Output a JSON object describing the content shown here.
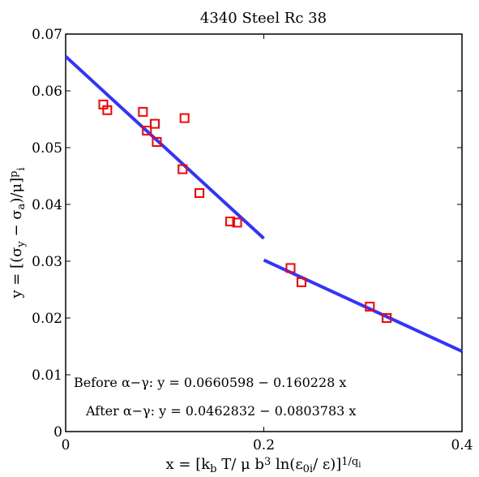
{
  "chart_data": {
    "type": "scatter",
    "title": "4340 Steel Rc 38",
    "xlabel": {
      "parts": [
        {
          "t": "x = [k",
          "s": "n"
        },
        {
          "t": "b",
          "s": "sub"
        },
        {
          "t": " T/ μ b",
          "s": "n"
        },
        {
          "t": "3",
          "s": "sup"
        },
        {
          "t": " ln(ε",
          "s": "n"
        },
        {
          "t": "0i",
          "s": "sub"
        },
        {
          "t": "/ ε)]",
          "s": "n"
        },
        {
          "t": "1/q",
          "s": "sup"
        },
        {
          "t": "i",
          "s": "supsub"
        }
      ]
    },
    "ylabel": {
      "parts": [
        {
          "t": "y = [(σ",
          "s": "n"
        },
        {
          "t": "y",
          "s": "sub"
        },
        {
          "t": " − σ",
          "s": "n"
        },
        {
          "t": "a",
          "s": "sub"
        },
        {
          "t": ")/μ]",
          "s": "n"
        },
        {
          "t": "p",
          "s": "sup"
        },
        {
          "t": "i",
          "s": "sub"
        }
      ]
    },
    "xlim": [
      0,
      0.4
    ],
    "ylim": [
      0,
      0.07
    ],
    "xticks": [
      0,
      0.2,
      0.4
    ],
    "xtick_labels": [
      "0",
      "0.2",
      "0.4"
    ],
    "yticks": [
      0,
      0.01,
      0.02,
      0.03,
      0.04,
      0.05,
      0.06,
      0.07
    ],
    "ytick_labels": [
      "0",
      "0.01",
      "0.02",
      "0.03",
      "0.04",
      "0.05",
      "0.06",
      "0.07"
    ],
    "grid": false,
    "points": {
      "x": [
        0.038,
        0.042,
        0.078,
        0.082,
        0.09,
        0.092,
        0.118,
        0.12,
        0.135,
        0.166,
        0.173,
        0.227,
        0.238,
        0.307,
        0.324
      ],
      "y": [
        0.0576,
        0.0566,
        0.0563,
        0.053,
        0.0542,
        0.051,
        0.0462,
        0.0552,
        0.042,
        0.037,
        0.0368,
        0.0288,
        0.0263,
        0.022,
        0.02
      ],
      "color": "#ff0000",
      "marker": "square-open"
    },
    "fit_lines": [
      {
        "x": [
          0,
          0.2
        ],
        "intercept": 0.0660598,
        "slope": -0.160228,
        "color": "#3333ff"
      },
      {
        "x": [
          0.2,
          0.4
        ],
        "intercept": 0.0462832,
        "slope": -0.0803783,
        "color": "#3333ff"
      }
    ],
    "annotations": [
      "Before α−γ: y = 0.0660598 − 0.160228 x",
      "After α−γ: y = 0.0462832 − 0.0803783 x"
    ]
  }
}
